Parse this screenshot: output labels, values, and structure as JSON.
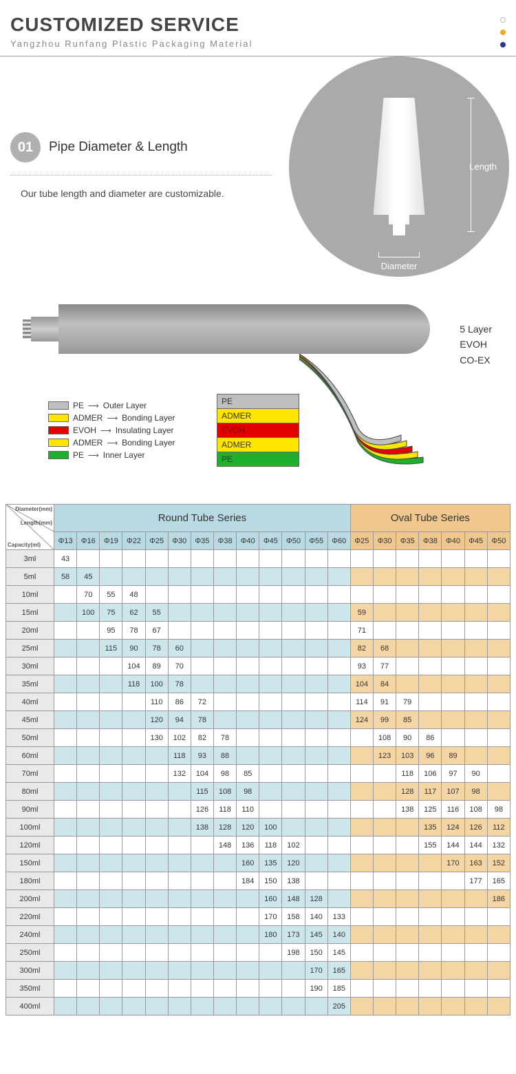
{
  "header": {
    "title": "CUSTOMIZED SERVICE",
    "subtitle": "Yangzhou Runfang Plastic Packaging Material"
  },
  "dot_colors": [
    "#ffffff",
    "#f5a623",
    "#2b3a8f"
  ],
  "section1": {
    "num": "01",
    "title": "Pipe Diameter & Length",
    "desc": "Our tube length and diameter are customizable.",
    "length_label": "Length",
    "diameter_label": "Diameter",
    "circle_bg": "#aaaaaa"
  },
  "diagram": {
    "side_labels": [
      "5 Layer",
      "EVOH",
      "CO-EX"
    ],
    "layers": [
      {
        "name": "PE",
        "role": "Outer Layer",
        "color": "#bfbfbf"
      },
      {
        "name": "ADMER",
        "role": "Bonding Layer",
        "color": "#ffe600"
      },
      {
        "name": "EVOH",
        "role": "Insulating Layer",
        "color": "#e30000"
      },
      {
        "name": "ADMER",
        "role": "Bonding Layer",
        "color": "#ffe600"
      },
      {
        "name": "PE",
        "role": "Inner Layer",
        "color": "#1fae2d"
      }
    ],
    "stack_labels": [
      "PE",
      "ADMER",
      "EVOH",
      "ADMER",
      "PE"
    ],
    "stack_colors": [
      "#bfbfbf",
      "#ffe600",
      "#e30000",
      "#ffe600",
      "#1fae2d"
    ]
  },
  "table": {
    "corner_labels": [
      "Diameter(mm)",
      "Length(mm)",
      "Capacity(ml)"
    ],
    "round_header": "Round Tube Series",
    "oval_header": "Oval Tube Series",
    "round_cols": [
      "Φ13",
      "Φ16",
      "Φ19",
      "Φ22",
      "Φ25",
      "Φ30",
      "Φ35",
      "Φ38",
      "Φ40",
      "Φ45",
      "Φ50",
      "Φ55",
      "Φ60"
    ],
    "oval_cols": [
      "Φ25",
      "Φ30",
      "Φ35",
      "Φ38",
      "Φ40",
      "Φ45",
      "Φ50"
    ],
    "colors": {
      "round_header_bg": "#b9dae3",
      "oval_header_bg": "#f0c78e",
      "round_alt_bg": "#cde6ec",
      "oval_alt_bg": "#f5d5a3",
      "cap_bg": "#e9e9e9"
    },
    "rows": [
      {
        "cap": "3ml",
        "alt": false,
        "r": [
          "43",
          "",
          "",
          "",
          "",
          "",
          "",
          "",
          "",
          "",
          "",
          "",
          ""
        ],
        "o": [
          "",
          "",
          "",
          "",
          "",
          "",
          ""
        ]
      },
      {
        "cap": "5ml",
        "alt": true,
        "r": [
          "58",
          "45",
          "",
          "",
          "",
          "",
          "",
          "",
          "",
          "",
          "",
          "",
          ""
        ],
        "o": [
          "",
          "",
          "",
          "",
          "",
          "",
          ""
        ]
      },
      {
        "cap": "10ml",
        "alt": false,
        "r": [
          "",
          "70",
          "55",
          "48",
          "",
          "",
          "",
          "",
          "",
          "",
          "",
          "",
          ""
        ],
        "o": [
          "",
          "",
          "",
          "",
          "",
          "",
          ""
        ]
      },
      {
        "cap": "15ml",
        "alt": true,
        "r": [
          "",
          "100",
          "75",
          "62",
          "55",
          "",
          "",
          "",
          "",
          "",
          "",
          "",
          ""
        ],
        "o": [
          "59",
          "",
          "",
          "",
          "",
          "",
          ""
        ]
      },
      {
        "cap": "20ml",
        "alt": false,
        "r": [
          "",
          "",
          "95",
          "78",
          "67",
          "",
          "",
          "",
          "",
          "",
          "",
          "",
          ""
        ],
        "o": [
          "71",
          "",
          "",
          "",
          "",
          "",
          ""
        ]
      },
      {
        "cap": "25ml",
        "alt": true,
        "r": [
          "",
          "",
          "115",
          "90",
          "78",
          "60",
          "",
          "",
          "",
          "",
          "",
          "",
          ""
        ],
        "o": [
          "82",
          "68",
          "",
          "",
          "",
          "",
          ""
        ]
      },
      {
        "cap": "30ml",
        "alt": false,
        "r": [
          "",
          "",
          "",
          "104",
          "89",
          "70",
          "",
          "",
          "",
          "",
          "",
          "",
          ""
        ],
        "o": [
          "93",
          "77",
          "",
          "",
          "",
          "",
          ""
        ]
      },
      {
        "cap": "35ml",
        "alt": true,
        "r": [
          "",
          "",
          "",
          "118",
          "100",
          "78",
          "",
          "",
          "",
          "",
          "",
          "",
          ""
        ],
        "o": [
          "104",
          "84",
          "",
          "",
          "",
          "",
          ""
        ]
      },
      {
        "cap": "40ml",
        "alt": false,
        "r": [
          "",
          "",
          "",
          "",
          "110",
          "86",
          "72",
          "",
          "",
          "",
          "",
          "",
          ""
        ],
        "o": [
          "114",
          "91",
          "79",
          "",
          "",
          "",
          ""
        ]
      },
      {
        "cap": "45ml",
        "alt": true,
        "r": [
          "",
          "",
          "",
          "",
          "120",
          "94",
          "78",
          "",
          "",
          "",
          "",
          "",
          ""
        ],
        "o": [
          "124",
          "99",
          "85",
          "",
          "",
          "",
          ""
        ]
      },
      {
        "cap": "50ml",
        "alt": false,
        "r": [
          "",
          "",
          "",
          "",
          "130",
          "102",
          "82",
          "78",
          "",
          "",
          "",
          "",
          ""
        ],
        "o": [
          "",
          "108",
          "90",
          "86",
          "",
          "",
          ""
        ]
      },
      {
        "cap": "60ml",
        "alt": true,
        "r": [
          "",
          "",
          "",
          "",
          "",
          "118",
          "93",
          "88",
          "",
          "",
          "",
          "",
          ""
        ],
        "o": [
          "",
          "123",
          "103",
          "96",
          "89",
          "",
          ""
        ]
      },
      {
        "cap": "70ml",
        "alt": false,
        "r": [
          "",
          "",
          "",
          "",
          "",
          "132",
          "104",
          "98",
          "85",
          "",
          "",
          "",
          ""
        ],
        "o": [
          "",
          "",
          "118",
          "106",
          "97",
          "90",
          ""
        ]
      },
      {
        "cap": "80ml",
        "alt": true,
        "r": [
          "",
          "",
          "",
          "",
          "",
          "",
          "115",
          "108",
          "98",
          "",
          "",
          "",
          ""
        ],
        "o": [
          "",
          "",
          "128",
          "117",
          "107",
          "98",
          ""
        ]
      },
      {
        "cap": "90ml",
        "alt": false,
        "r": [
          "",
          "",
          "",
          "",
          "",
          "",
          "126",
          "118",
          "110",
          "",
          "",
          "",
          ""
        ],
        "o": [
          "",
          "",
          "138",
          "125",
          "116",
          "108",
          "98"
        ]
      },
      {
        "cap": "100ml",
        "alt": true,
        "r": [
          "",
          "",
          "",
          "",
          "",
          "",
          "138",
          "128",
          "120",
          "100",
          "",
          "",
          ""
        ],
        "o": [
          "",
          "",
          "",
          "135",
          "124",
          "126",
          "112"
        ]
      },
      {
        "cap": "120ml",
        "alt": false,
        "r": [
          "",
          "",
          "",
          "",
          "",
          "",
          "",
          "148",
          "136",
          "118",
          "102",
          "",
          ""
        ],
        "o": [
          "",
          "",
          "",
          "155",
          "144",
          "144",
          "132"
        ]
      },
      {
        "cap": "150ml",
        "alt": true,
        "r": [
          "",
          "",
          "",
          "",
          "",
          "",
          "",
          "",
          "160",
          "135",
          "120",
          "",
          ""
        ],
        "o": [
          "",
          "",
          "",
          "",
          "170",
          "163",
          "152"
        ]
      },
      {
        "cap": "180ml",
        "alt": false,
        "r": [
          "",
          "",
          "",
          "",
          "",
          "",
          "",
          "",
          "184",
          "150",
          "138",
          "",
          ""
        ],
        "o": [
          "",
          "",
          "",
          "",
          "",
          "177",
          "165"
        ]
      },
      {
        "cap": "200ml",
        "alt": true,
        "r": [
          "",
          "",
          "",
          "",
          "",
          "",
          "",
          "",
          "",
          "160",
          "148",
          "128",
          ""
        ],
        "o": [
          "",
          "",
          "",
          "",
          "",
          "",
          "186"
        ]
      },
      {
        "cap": "220ml",
        "alt": false,
        "r": [
          "",
          "",
          "",
          "",
          "",
          "",
          "",
          "",
          "",
          "170",
          "158",
          "140",
          "133"
        ],
        "o": [
          "",
          "",
          "",
          "",
          "",
          "",
          ""
        ]
      },
      {
        "cap": "240ml",
        "alt": true,
        "r": [
          "",
          "",
          "",
          "",
          "",
          "",
          "",
          "",
          "",
          "180",
          "173",
          "145",
          "140"
        ],
        "o": [
          "",
          "",
          "",
          "",
          "",
          "",
          ""
        ]
      },
      {
        "cap": "250ml",
        "alt": false,
        "r": [
          "",
          "",
          "",
          "",
          "",
          "",
          "",
          "",
          "",
          "",
          "198",
          "150",
          "145"
        ],
        "o": [
          "",
          "",
          "",
          "",
          "",
          "",
          ""
        ]
      },
      {
        "cap": "300ml",
        "alt": true,
        "r": [
          "",
          "",
          "",
          "",
          "",
          "",
          "",
          "",
          "",
          "",
          "",
          "170",
          "165"
        ],
        "o": [
          "",
          "",
          "",
          "",
          "",
          "",
          ""
        ]
      },
      {
        "cap": "350ml",
        "alt": false,
        "r": [
          "",
          "",
          "",
          "",
          "",
          "",
          "",
          "",
          "",
          "",
          "",
          "190",
          "185"
        ],
        "o": [
          "",
          "",
          "",
          "",
          "",
          "",
          ""
        ]
      },
      {
        "cap": "400ml",
        "alt": true,
        "r": [
          "",
          "",
          "",
          "",
          "",
          "",
          "",
          "",
          "",
          "",
          "",
          "",
          "205"
        ],
        "o": [
          "",
          "",
          "",
          "",
          "",
          "",
          ""
        ]
      }
    ]
  }
}
